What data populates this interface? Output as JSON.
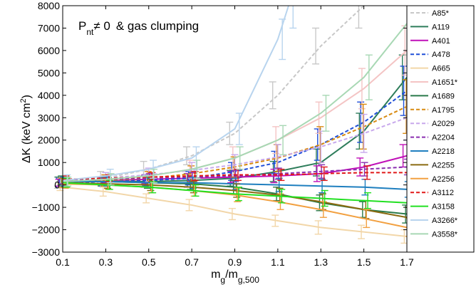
{
  "chart_data": {
    "type": "line",
    "annotation": {
      "prefix": "P",
      "subscript": "nt",
      "relation": "≠ 0",
      "suffix": "& gas clumping"
    },
    "ylabel": {
      "main": "ΔK (keV cm",
      "superscript": "2",
      "close": ")"
    },
    "xlabel": {
      "main": "m",
      "sub1": "g",
      "mid": "/m",
      "sub2": "g,500"
    },
    "xlim": [
      0.1,
      1.7
    ],
    "ylim": [
      -3000,
      8000
    ],
    "x_ticks": [
      0.1,
      0.3,
      0.5,
      0.7,
      0.9,
      1.1,
      1.3,
      1.5,
      1.7
    ],
    "x_tick_labels": [
      "0.1",
      "0.3",
      "0.5",
      "0.7",
      "0.9",
      "1.1",
      "1.3",
      "1.5",
      "1.7"
    ],
    "y_ticks": [
      -3000,
      -2000,
      -1000,
      0,
      1000,
      2000,
      3000,
      4000,
      5000,
      6000,
      7000,
      8000
    ],
    "y_tick_labels": [
      "−3000",
      "−2000",
      "−1000",
      "0",
      "1000",
      "2000",
      "3000",
      "4000",
      "5000",
      "6000",
      "7000",
      "8000"
    ],
    "grid": false,
    "legend_position": "right",
    "series": [
      {
        "name": "A85*",
        "color": "#c8c8c8",
        "dash": true,
        "x": [
          0.1,
          0.3,
          0.5,
          0.7,
          0.9,
          1.1,
          1.3,
          1.5
        ],
        "y": [
          100,
          300,
          700,
          1300,
          2300,
          4000,
          6200,
          8000
        ],
        "err": [
          250,
          300,
          350,
          400,
          500,
          600,
          800,
          1000
        ]
      },
      {
        "name": "A119",
        "color": "#2e7d5b",
        "dash": false,
        "x": [
          0.1,
          0.3,
          0.5,
          0.7,
          0.9,
          1.1,
          1.3,
          1.5,
          1.7
        ],
        "y": [
          150,
          150,
          150,
          200,
          300,
          600,
          1000,
          2400,
          4800
        ],
        "err": [
          200,
          200,
          250,
          300,
          350,
          450,
          600,
          800,
          1000
        ]
      },
      {
        "name": "A401",
        "color": "#c010b8",
        "dash": false,
        "x": [
          0.1,
          0.3,
          0.5,
          0.7,
          0.9,
          1.1,
          1.3,
          1.5,
          1.7
        ],
        "y": [
          100,
          200,
          250,
          300,
          350,
          400,
          500,
          800,
          1300
        ],
        "err": [
          150,
          150,
          200,
          200,
          250,
          300,
          350,
          400,
          500
        ]
      },
      {
        "name": "A478",
        "color": "#1f4fd8",
        "dash": true,
        "x": [
          0.1,
          0.3,
          0.5,
          0.7,
          0.9,
          1.1,
          1.3,
          1.5,
          1.7
        ],
        "y": [
          100,
          150,
          200,
          300,
          600,
          1000,
          1800,
          2800,
          4200
        ],
        "err": [
          200,
          200,
          250,
          300,
          400,
          500,
          700,
          900,
          1100
        ]
      },
      {
        "name": "A665",
        "color": "#f2d6a8",
        "dash": false,
        "x": [
          0.1,
          0.3,
          0.5,
          0.7,
          0.9,
          1.1,
          1.3,
          1.5,
          1.7
        ],
        "y": [
          -100,
          -300,
          -600,
          -900,
          -1300,
          -1600,
          -1900,
          -2100,
          -2300
        ],
        "err": [
          150,
          200,
          200,
          250,
          250,
          250,
          300,
          300,
          300
        ]
      },
      {
        "name": "A1651*",
        "color": "#f4c4c4",
        "dash": false,
        "x": [
          0.1,
          0.3,
          0.5,
          0.7,
          0.9,
          1.1,
          1.3,
          1.5,
          1.7
        ],
        "y": [
          100,
          200,
          400,
          700,
          1200,
          2000,
          3000,
          4300,
          6000
        ],
        "err": [
          200,
          250,
          300,
          400,
          500,
          600,
          700,
          900,
          1100
        ]
      },
      {
        "name": "A1689",
        "color": "#2a7a4a",
        "dash": false,
        "x": [
          0.1,
          0.3,
          0.5,
          0.7,
          0.9,
          1.1,
          1.3,
          1.5,
          1.7
        ],
        "y": [
          200,
          150,
          100,
          50,
          -100,
          -400,
          -800,
          -1100,
          -1300
        ],
        "err": [
          200,
          200,
          250,
          250,
          300,
          300,
          350,
          350,
          400
        ]
      },
      {
        "name": "A1795",
        "color": "#d88a10",
        "dash": true,
        "x": [
          0.1,
          0.3,
          0.5,
          0.7,
          0.9,
          1.1,
          1.3,
          1.5,
          1.7
        ],
        "y": [
          100,
          200,
          300,
          500,
          800,
          1200,
          1800,
          2600,
          3500
        ],
        "err": [
          200,
          250,
          300,
          350,
          450,
          600,
          800,
          1000,
          1200
        ]
      },
      {
        "name": "A2029",
        "color": "#c8a8ec",
        "dash": true,
        "x": [
          0.1,
          0.3,
          0.5,
          0.7,
          0.9,
          1.1,
          1.3,
          1.5,
          1.7
        ],
        "y": [
          150,
          300,
          450,
          650,
          900,
          1250,
          1700,
          2300,
          3000
        ],
        "err": [
          200,
          250,
          300,
          350,
          450,
          550,
          700,
          850,
          1000
        ]
      },
      {
        "name": "A2204",
        "color": "#8a2fb0",
        "dash": true,
        "x": [
          0.1,
          0.3,
          0.5,
          0.7,
          0.9,
          1.1,
          1.3,
          1.5,
          1.7
        ],
        "y": [
          200,
          250,
          300,
          350,
          400,
          500,
          600,
          700,
          800
        ],
        "err": [
          150,
          150,
          200,
          200,
          250,
          250,
          300,
          300,
          350
        ]
      },
      {
        "name": "A2218",
        "color": "#1f7fbf",
        "dash": false,
        "x": [
          0.1,
          0.3,
          0.5,
          0.7,
          0.9,
          1.1,
          1.3,
          1.5,
          1.7
        ],
        "y": [
          150,
          150,
          100,
          100,
          50,
          0,
          -50,
          -100,
          -200
        ],
        "err": [
          200,
          200,
          200,
          250,
          250,
          300,
          300,
          350,
          350
        ]
      },
      {
        "name": "A2255",
        "color": "#8a6a10",
        "dash": false,
        "x": [
          0.1,
          0.3,
          0.5,
          0.7,
          0.9,
          1.1,
          1.3,
          1.5,
          1.7
        ],
        "y": [
          100,
          50,
          0,
          -100,
          -250,
          -450,
          -750,
          -1100,
          -1450
        ],
        "err": [
          200,
          200,
          250,
          250,
          300,
          300,
          350,
          400,
          450
        ]
      },
      {
        "name": "A2256",
        "color": "#f2a040",
        "dash": false,
        "x": [
          0.1,
          0.3,
          0.5,
          0.7,
          0.9,
          1.1,
          1.3,
          1.5,
          1.7
        ],
        "y": [
          50,
          0,
          -100,
          -250,
          -450,
          -750,
          -1100,
          -1500,
          -1900
        ],
        "err": [
          200,
          200,
          250,
          250,
          300,
          350,
          350,
          400,
          400
        ]
      },
      {
        "name": "A3112",
        "color": "#e01818",
        "dash": true,
        "x": [
          0.1,
          0.3,
          0.5,
          0.7,
          0.9,
          1.1,
          1.3,
          1.5,
          1.7
        ],
        "y": [
          250,
          300,
          350,
          400,
          450,
          450,
          500,
          550,
          550
        ],
        "err": [
          150,
          150,
          200,
          200,
          250,
          250,
          300,
          300,
          350
        ]
      },
      {
        "name": "A3158",
        "color": "#22e022",
        "dash": false,
        "x": [
          0.1,
          0.3,
          0.5,
          0.7,
          0.9,
          1.1,
          1.3,
          1.5,
          1.7
        ],
        "y": [
          100,
          0,
          -100,
          -250,
          -400,
          -500,
          -600,
          -700,
          -800
        ],
        "err": [
          200,
          200,
          250,
          250,
          300,
          300,
          350,
          350,
          400
        ]
      },
      {
        "name": "A3266*",
        "color": "#b8d4ee",
        "dash": false,
        "x": [
          0.1,
          0.3,
          0.5,
          0.7,
          0.9,
          1.1,
          1.15
        ],
        "y": [
          200,
          400,
          700,
          1200,
          2500,
          6500,
          8000
        ],
        "err": [
          250,
          300,
          400,
          500,
          700,
          900,
          1000
        ]
      },
      {
        "name": "A3558*",
        "color": "#a8d8b4",
        "dash": false,
        "x": [
          0.1,
          0.3,
          0.5,
          0.7,
          0.9,
          1.1,
          1.3,
          1.5,
          1.7
        ],
        "y": [
          150,
          250,
          400,
          700,
          1200,
          2000,
          3200,
          4800,
          7200
        ],
        "err": [
          200,
          250,
          300,
          400,
          500,
          650,
          800,
          1000,
          1200
        ]
      }
    ]
  }
}
